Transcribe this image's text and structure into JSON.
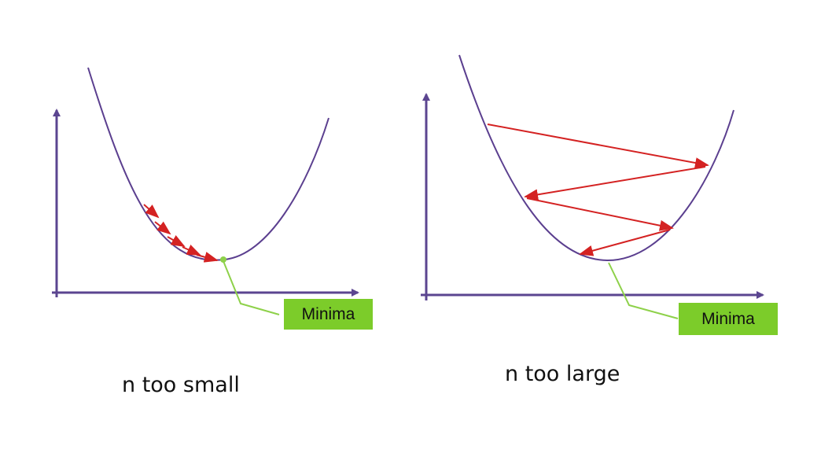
{
  "panels": [
    {
      "caption": "n too small",
      "minima_label": "Minima"
    },
    {
      "caption": "n too large",
      "minima_label": "Minima"
    }
  ],
  "colors": {
    "axis": "#5b4590",
    "curve": "#5b3f8f",
    "arrow": "#d42222",
    "label_bg": "#7ccc2a",
    "leader": "#8ed14a"
  }
}
